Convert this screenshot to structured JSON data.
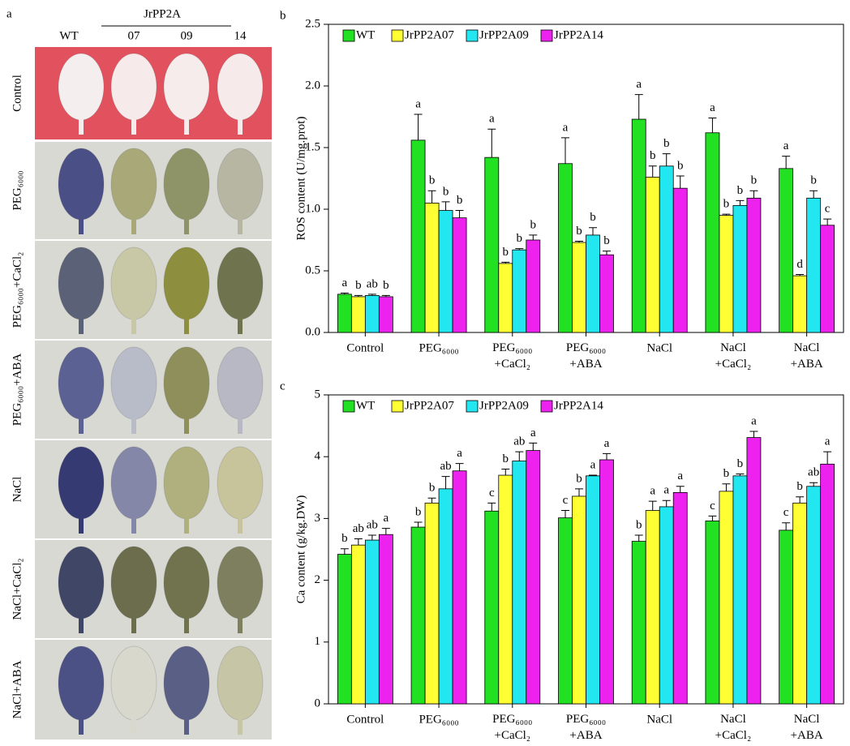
{
  "panel_a": {
    "label": "a",
    "group": "JrPP2A",
    "columns": [
      "WT",
      "07",
      "09",
      "14"
    ],
    "rows": [
      "Control",
      "PEG₆₀₀₀",
      "PEG₆₀₀₀+CaCl₂",
      "PEG₆₀₀₀+ABA",
      "NaCl",
      "NaCl+CaCl₂",
      "NaCl+ABA"
    ]
  },
  "chart_data": [
    {
      "type": "bar",
      "panel_label": "b",
      "y_label": "ROS content (U/mg.prot)",
      "categories": [
        "Control",
        "PEG₆₀₀₀",
        "PEG₆₀₀₀\n+CaCl₂",
        "PEG₆₀₀₀\n+ABA",
        "NaCl",
        "NaCl\n+CaCl₂",
        "NaCl\n+ABA"
      ],
      "ylim": [
        0,
        2.5
      ],
      "yticks": [
        {
          "value": 0,
          "label": "0.0"
        },
        0.5,
        {
          "value": 1,
          "label": "1.0"
        },
        1.5,
        {
          "value": 2,
          "label": "2.0"
        },
        2.5
      ],
      "legend": "top-left",
      "series": [
        {
          "name": "WT",
          "color": "#22e022",
          "values": [
            0.31,
            1.56,
            1.42,
            1.37,
            1.73,
            1.62,
            1.33
          ],
          "errors": [
            0.01,
            0.21,
            0.23,
            0.21,
            0.2,
            0.12,
            0.1
          ],
          "annotations": [
            "a",
            "a",
            "a",
            "a",
            "a",
            "a",
            "a"
          ]
        },
        {
          "name": "JrPP2A07",
          "color": "#ffff33",
          "values": [
            0.29,
            1.05,
            0.56,
            0.73,
            1.26,
            0.95,
            0.46
          ],
          "errors": [
            0.01,
            0.1,
            0.01,
            0.01,
            0.09,
            0.01,
            0.01
          ],
          "annotations": [
            "b",
            "b",
            "b",
            "b",
            "b",
            "b",
            "d"
          ]
        },
        {
          "name": "JrPP2A09",
          "color": "#22e6f0",
          "values": [
            0.3,
            0.99,
            0.67,
            0.79,
            1.35,
            1.03,
            1.09
          ],
          "errors": [
            0.01,
            0.07,
            0.01,
            0.06,
            0.1,
            0.04,
            0.06
          ],
          "annotations": [
            "ab",
            "b",
            "b",
            "b",
            "b",
            "b",
            "b"
          ]
        },
        {
          "name": "JrPP2A14",
          "color": "#ee22ee",
          "values": [
            0.29,
            0.93,
            0.75,
            0.63,
            1.17,
            1.09,
            0.87
          ],
          "errors": [
            0.01,
            0.06,
            0.04,
            0.03,
            0.1,
            0.06,
            0.05
          ],
          "annotations": [
            "b",
            "b",
            "b",
            "b",
            "b",
            "b",
            "c"
          ]
        }
      ]
    },
    {
      "type": "bar",
      "panel_label": "c",
      "y_label": "Ca content (g/kg.DW)",
      "categories": [
        "Control",
        "PEG₆₀₀₀",
        "PEG₆₀₀₀\n+CaCl₂",
        "PEG₆₀₀₀\n+ABA",
        "NaCl",
        "NaCl\n+CaCl₂",
        "NaCl\n+ABA"
      ],
      "ylim": [
        0,
        5
      ],
      "yticks": [
        0,
        1,
        2,
        3,
        4,
        5
      ],
      "legend": "top-left",
      "series": [
        {
          "name": "WT",
          "color": "#22e022",
          "values": [
            2.42,
            2.86,
            3.12,
            3.01,
            2.63,
            2.96,
            2.81
          ],
          "errors": [
            0.09,
            0.08,
            0.13,
            0.12,
            0.1,
            0.08,
            0.12
          ],
          "annotations": [
            "b",
            "b",
            "c",
            "c",
            "b",
            "c",
            "c"
          ]
        },
        {
          "name": "JrPP2A07",
          "color": "#ffff33",
          "values": [
            2.57,
            3.25,
            3.7,
            3.36,
            3.13,
            3.44,
            3.25
          ],
          "errors": [
            0.1,
            0.08,
            0.1,
            0.12,
            0.15,
            0.12,
            0.1
          ],
          "annotations": [
            "ab",
            "b",
            "b",
            "b",
            "a",
            "b",
            "b"
          ]
        },
        {
          "name": "JrPP2A09",
          "color": "#22e6f0",
          "values": [
            2.65,
            3.48,
            3.93,
            3.69,
            3.19,
            3.69,
            3.52
          ],
          "errors": [
            0.08,
            0.2,
            0.15,
            0.01,
            0.1,
            0.03,
            0.06
          ],
          "annotations": [
            "ab",
            "ab",
            "ab",
            "a",
            "a",
            "b",
            "ab"
          ]
        },
        {
          "name": "JrPP2A14",
          "color": "#ee22ee",
          "values": [
            2.74,
            3.77,
            4.1,
            3.95,
            3.42,
            4.31,
            3.88
          ],
          "errors": [
            0.1,
            0.12,
            0.12,
            0.1,
            0.1,
            0.1,
            0.2
          ],
          "annotations": [
            "a",
            "a",
            "a",
            "a",
            "a",
            "a",
            "a"
          ]
        }
      ]
    }
  ]
}
